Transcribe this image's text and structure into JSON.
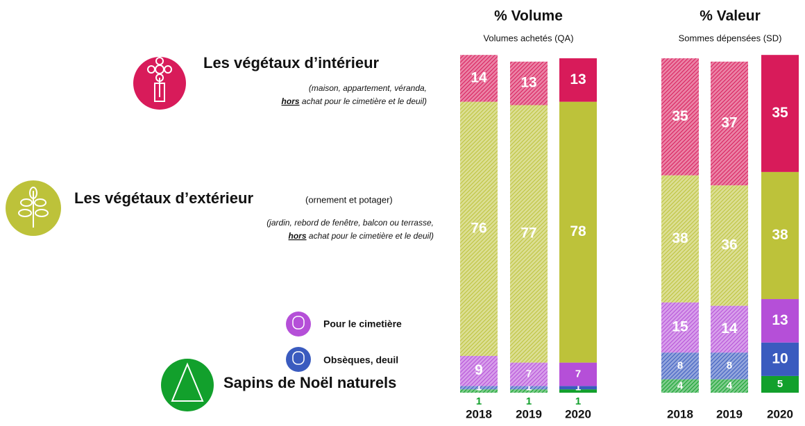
{
  "chart_data": [
    {
      "type": "stacked-bar",
      "title": "% Volume",
      "subtitle": "Volumes achetés (QA)",
      "categories": [
        "2018",
        "2019",
        "2020"
      ],
      "series": [
        {
          "name": "Les végétaux d’intérieur",
          "note": [
            "(maison, appartement, véranda,",
            "hors",
            " achat pour le cimetière et le deuil)"
          ],
          "color": "#d81b5a",
          "values": [
            14,
            13,
            13
          ]
        },
        {
          "name": "Les végétaux d’extérieur",
          "detail": "(ornement et potager)",
          "note": [
            "(jardin, rebord de fenêtre, balcon ou terrasse,",
            "hors",
            " achat pour le cimetière et le deuil)"
          ],
          "color": "#bdc23a",
          "values": [
            76,
            77,
            78
          ]
        },
        {
          "name": "Pour le cimetière",
          "color": "#b54fd8",
          "values": [
            9,
            7,
            7
          ]
        },
        {
          "name": "Obsèques, deuil",
          "color": "#3a5bbf",
          "values": [
            1,
            1,
            1
          ]
        },
        {
          "name": "Sapins de Noël naturels",
          "color": "#12a02c",
          "values": [
            1,
            1,
            1
          ]
        }
      ]
    },
    {
      "type": "stacked-bar",
      "title": "% Valeur",
      "subtitle": "Sommes dépensées (SD)",
      "categories": [
        "2018",
        "2019",
        "2020"
      ],
      "series": [
        {
          "color": "#d81b5a",
          "values": [
            35,
            37,
            35
          ]
        },
        {
          "color": "#bdc23a",
          "values": [
            38,
            36,
            38
          ]
        },
        {
          "color": "#b54fd8",
          "values": [
            15,
            14,
            13
          ]
        },
        {
          "color": "#3a5bbf",
          "values": [
            8,
            8,
            10
          ]
        },
        {
          "color": "#12a02c",
          "values": [
            4,
            4,
            5
          ]
        }
      ]
    }
  ]
}
